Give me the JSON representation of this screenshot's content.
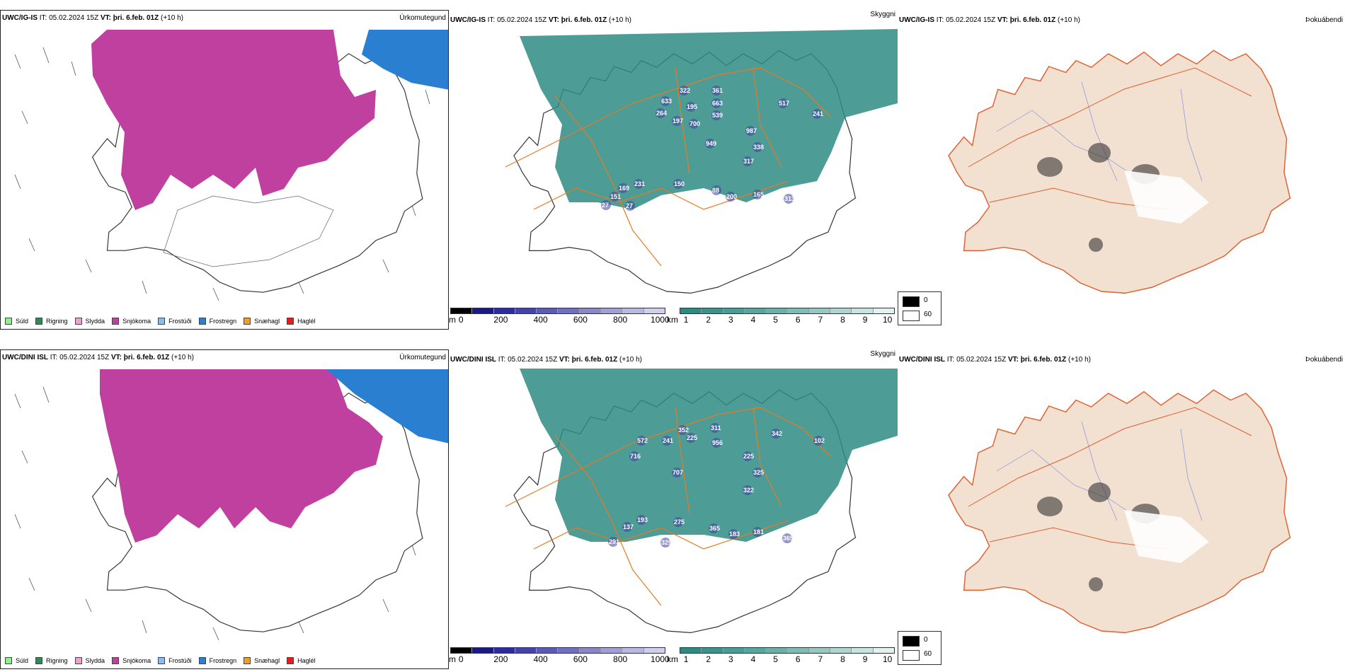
{
  "rows": [
    {
      "model": "UWC/IG-IS",
      "it_label": "IT:",
      "it_value": "05.02.2024 15Z",
      "vt_label": "VT:",
      "vt_value": "þri. 6.feb. 01Z",
      "lead": "(+10 h)",
      "fields": [
        "Úrkomutegund",
        "Skyggni",
        "Þokuábendi"
      ],
      "elevations": [
        "633",
        "322",
        "361",
        "264",
        "195",
        "663",
        "197",
        "700",
        "539",
        "517",
        "241",
        "949",
        "987",
        "338",
        "317",
        "231",
        "169",
        "150",
        "151",
        "88",
        "200",
        "165",
        "313",
        "27",
        "27"
      ]
    },
    {
      "model": "UWC/DINI ISL",
      "it_label": "IT:",
      "it_value": "05.02.2024 15Z",
      "vt_label": "VT:",
      "vt_value": "þri. 6.feb. 01Z",
      "lead": "(+10 h)",
      "fields": [
        "Úrkomutegund",
        "Skyggni",
        "Þokuábendi"
      ],
      "elevations": [
        "352",
        "311",
        "572",
        "241",
        "225",
        "956",
        "342",
        "102",
        "716",
        "707",
        "225",
        "325",
        "322",
        "193",
        "137",
        "275",
        "365",
        "183",
        "181",
        "365",
        "291",
        "329"
      ]
    }
  ],
  "precip_legend": [
    {
      "label": "Súld",
      "color": "#90ee90"
    },
    {
      "label": "Rigning",
      "color": "#2e8b57"
    },
    {
      "label": "Slydda",
      "color": "#f0a0d0"
    },
    {
      "label": "Snjókoma",
      "color": "#c040a0"
    },
    {
      "label": "Frostúði",
      "color": "#87bdf0"
    },
    {
      "label": "Frostregn",
      "color": "#2a7fd0"
    },
    {
      "label": "Snæhagl",
      "color": "#f0a020"
    },
    {
      "label": "Haglél",
      "color": "#e02020"
    }
  ],
  "elev_bar": {
    "unit": "m",
    "ticks": [
      "0",
      "200",
      "400",
      "600",
      "800",
      "1000"
    ],
    "colors": [
      "#000000",
      "#1a1a80",
      "#2c2c9c",
      "#4444a8",
      "#5c5cb4",
      "#7070be",
      "#8888c8",
      "#a0a0d4",
      "#b8b8e0",
      "#d0d0ec"
    ]
  },
  "vis_bar": {
    "unit": "km",
    "ticks": [
      "1",
      "2",
      "3",
      "4",
      "5",
      "6",
      "7",
      "8",
      "9",
      "10"
    ],
    "colors": [
      "#2e8b84",
      "#3d938c",
      "#4c9b94",
      "#5ca59e",
      "#6eafa8",
      "#82bab4",
      "#98c7c2",
      "#b0d5d1",
      "#c8e3e0",
      "#e4f1ef"
    ]
  },
  "fog_legend": {
    "items": [
      {
        "label": "0",
        "color": "#000000"
      },
      {
        "label": "60",
        "color": "#ffffff"
      }
    ]
  },
  "colors": {
    "snow": "#c040a0",
    "freezing_rain": "#2a7fd0",
    "visibility": "#2e8b84",
    "roads": "#e87a20",
    "land_fog": "#f2e0d0"
  }
}
